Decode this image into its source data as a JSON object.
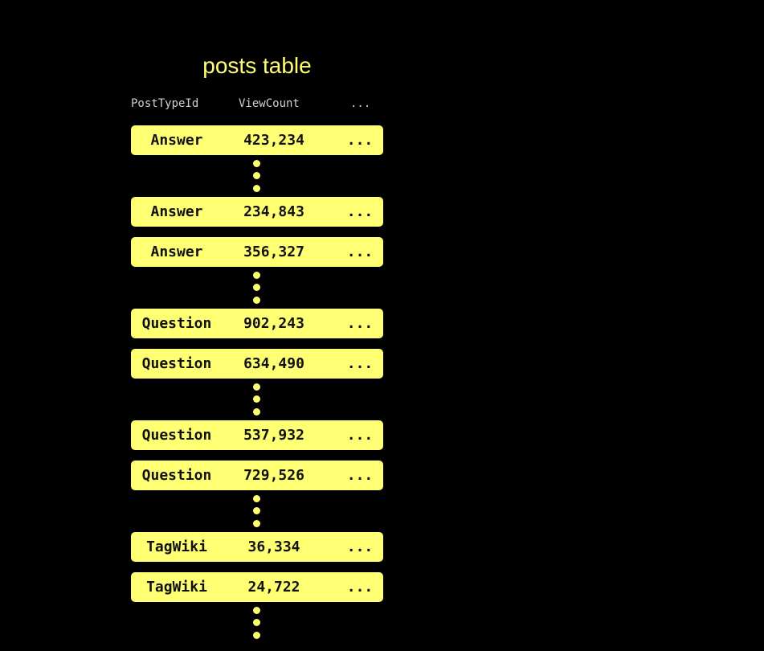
{
  "title": "posts table",
  "headers": [
    "PostTypeId",
    "ViewCount",
    "..."
  ],
  "colors": {
    "accent": "#FFFF73",
    "background": "#000000"
  },
  "items": [
    {
      "type": "row",
      "post_type": "Answer",
      "view_count": "423,234",
      "more": "..."
    },
    {
      "type": "ellipsis"
    },
    {
      "type": "row",
      "post_type": "Answer",
      "view_count": "234,843",
      "more": "..."
    },
    {
      "type": "row",
      "post_type": "Answer",
      "view_count": "356,327",
      "more": "..."
    },
    {
      "type": "ellipsis"
    },
    {
      "type": "row",
      "post_type": "Question",
      "view_count": "902,243",
      "more": "..."
    },
    {
      "type": "row",
      "post_type": "Question",
      "view_count": "634,490",
      "more": "..."
    },
    {
      "type": "ellipsis"
    },
    {
      "type": "row",
      "post_type": "Question",
      "view_count": "537,932",
      "more": "..."
    },
    {
      "type": "row",
      "post_type": "Question",
      "view_count": "729,526",
      "more": "..."
    },
    {
      "type": "ellipsis"
    },
    {
      "type": "row",
      "post_type": "TagWiki",
      "view_count": "36,334",
      "more": "..."
    },
    {
      "type": "row",
      "post_type": "TagWiki",
      "view_count": "24,722",
      "more": "..."
    },
    {
      "type": "ellipsis"
    }
  ]
}
